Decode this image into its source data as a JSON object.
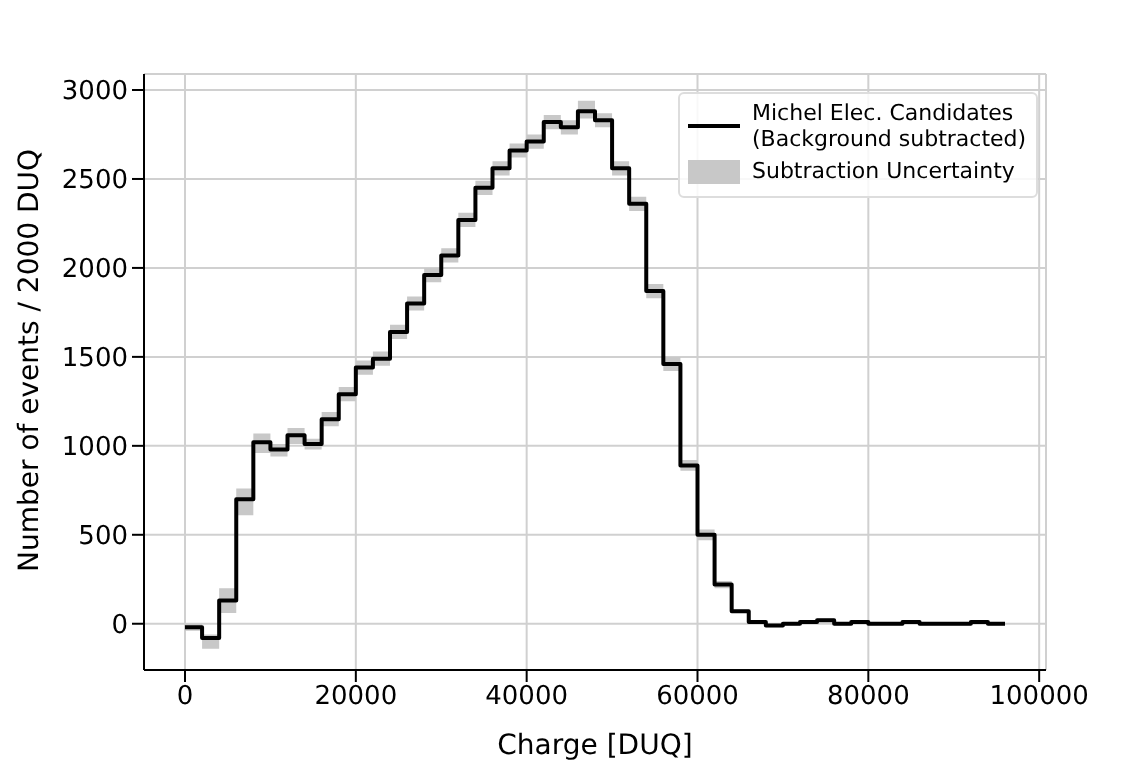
{
  "chart_data": {
    "type": "step",
    "xlabel": "Charge [DUQ]",
    "ylabel": "Number of events / 2000 DUQ",
    "x": [
      0,
      2000,
      4000,
      6000,
      8000,
      10000,
      12000,
      14000,
      16000,
      18000,
      20000,
      22000,
      24000,
      26000,
      28000,
      30000,
      32000,
      34000,
      36000,
      38000,
      40000,
      42000,
      44000,
      46000,
      48000,
      50000,
      52000,
      54000,
      56000,
      58000,
      60000,
      62000,
      64000,
      66000,
      68000,
      70000,
      72000,
      74000,
      76000,
      78000,
      80000,
      82000,
      84000,
      86000,
      88000,
      90000,
      92000,
      94000,
      96000
    ],
    "series": [
      {
        "name": "Michel Elec. Candidates (Background subtracted)",
        "color": "#000000",
        "values": [
          -20,
          -80,
          130,
          700,
          1020,
          980,
          1060,
          1010,
          1150,
          1290,
          1440,
          1490,
          1640,
          1800,
          1960,
          2070,
          2270,
          2450,
          2560,
          2660,
          2710,
          2820,
          2790,
          2880,
          2830,
          2560,
          2360,
          1870,
          1460,
          890,
          500,
          220,
          70,
          10,
          -10,
          0,
          10,
          20,
          0,
          10,
          0,
          0,
          10,
          0,
          0,
          0,
          10,
          0,
          0
        ],
        "lower": [
          -40,
          -140,
          60,
          610,
          960,
          940,
          1010,
          980,
          1110,
          1250,
          1400,
          1450,
          1600,
          1760,
          1920,
          2030,
          2230,
          2410,
          2520,
          2620,
          2670,
          2780,
          2750,
          2840,
          2790,
          2520,
          2320,
          1830,
          1420,
          860,
          470,
          200,
          60,
          0,
          -20,
          -10,
          0,
          10,
          -10,
          0,
          -10,
          -10,
          0,
          -10,
          -10,
          -10,
          0,
          -10,
          -10
        ],
        "upper": [
          0,
          -60,
          200,
          760,
          1070,
          1010,
          1100,
          1040,
          1190,
          1330,
          1480,
          1530,
          1680,
          1840,
          2000,
          2110,
          2310,
          2490,
          2600,
          2700,
          2750,
          2860,
          2830,
          2940,
          2870,
          2600,
          2400,
          1910,
          1500,
          920,
          530,
          240,
          80,
          20,
          0,
          10,
          20,
          30,
          10,
          20,
          10,
          10,
          20,
          10,
          10,
          10,
          20,
          10,
          10
        ]
      }
    ],
    "annotations": [
      "Subtraction Uncertainty"
    ],
    "xlim": [
      -4800,
      100800
    ],
    "xticks": [
      0,
      20000,
      40000,
      60000,
      80000,
      100000
    ],
    "ylim": [
      -260,
      3090
    ],
    "yticks": [
      0,
      500,
      1000,
      1500,
      2000,
      2500,
      3000
    ],
    "grid": true,
    "legend": "top right"
  }
}
